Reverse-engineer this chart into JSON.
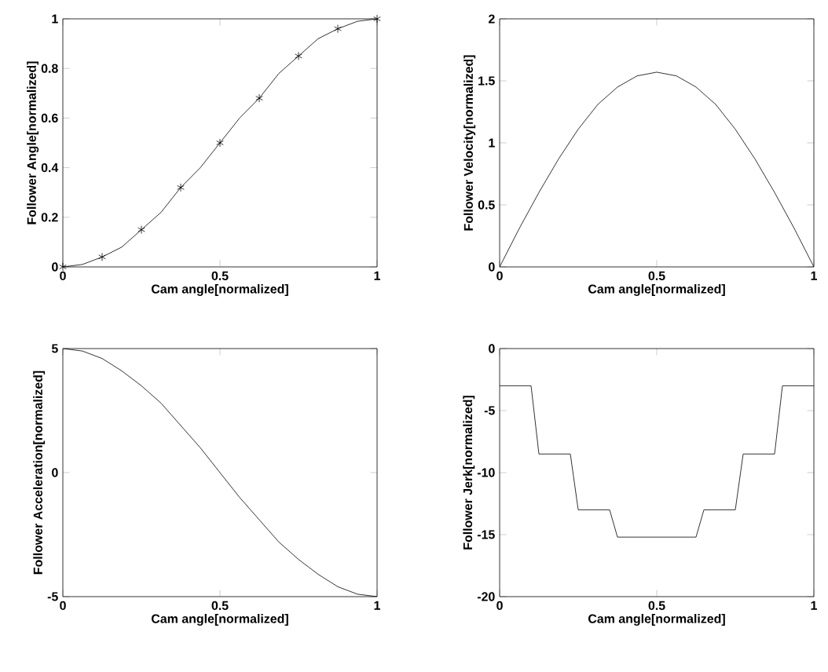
{
  "chart_data": [
    {
      "type": "line",
      "xlabel": "Cam angle[normalized]",
      "ylabel": "Follower Angle[normalized]",
      "xlim": [
        0,
        1
      ],
      "ylim": [
        0,
        1
      ],
      "xticks": [
        0,
        0.5,
        1
      ],
      "yticks": [
        0,
        0.2,
        0.4,
        0.6,
        0.8,
        1
      ],
      "series": [
        {
          "type": "line",
          "color": "#000000",
          "x": [
            0,
            0.0625,
            0.125,
            0.1875,
            0.25,
            0.3125,
            0.375,
            0.4375,
            0.5,
            0.5625,
            0.625,
            0.6875,
            0.75,
            0.8125,
            0.875,
            0.9375,
            1
          ],
          "values": [
            0,
            0.01,
            0.04,
            0.08,
            0.15,
            0.22,
            0.32,
            0.4,
            0.5,
            0.6,
            0.68,
            0.78,
            0.85,
            0.92,
            0.96,
            0.99,
            1
          ]
        },
        {
          "type": "scatter",
          "marker": "cross",
          "color": "#000000",
          "x": [
            0,
            0.125,
            0.25,
            0.375,
            0.5,
            0.625,
            0.75,
            0.875,
            1
          ],
          "values": [
            0,
            0.04,
            0.15,
            0.32,
            0.5,
            0.68,
            0.85,
            0.96,
            1
          ]
        }
      ]
    },
    {
      "type": "line",
      "xlabel": "Cam angle[normalized]",
      "ylabel": "Follower Velocity[normalized]",
      "xlim": [
        0,
        1
      ],
      "ylim": [
        0,
        2
      ],
      "xticks": [
        0,
        0.5,
        1
      ],
      "yticks": [
        0,
        0.5,
        1,
        1.5,
        2
      ],
      "series": [
        {
          "color": "#000000",
          "x": [
            0,
            0.0625,
            0.125,
            0.1875,
            0.25,
            0.3125,
            0.375,
            0.4375,
            0.5,
            0.5625,
            0.625,
            0.6875,
            0.75,
            0.8125,
            0.875,
            0.9375,
            1
          ],
          "values": [
            0,
            0.31,
            0.6,
            0.87,
            1.11,
            1.31,
            1.45,
            1.54,
            1.57,
            1.54,
            1.45,
            1.31,
            1.11,
            0.87,
            0.6,
            0.31,
            0
          ]
        }
      ]
    },
    {
      "type": "line",
      "xlabel": "Cam angle[normalized]",
      "ylabel": "Follower Acceleration[normalized]",
      "xlim": [
        0,
        1
      ],
      "ylim": [
        -5,
        5
      ],
      "xticks": [
        0,
        0.5,
        1
      ],
      "yticks": [
        -5,
        0,
        5
      ],
      "series": [
        {
          "color": "#000000",
          "x": [
            0,
            0.0625,
            0.125,
            0.1875,
            0.25,
            0.3125,
            0.375,
            0.4375,
            0.5,
            0.5625,
            0.625,
            0.6875,
            0.75,
            0.8125,
            0.875,
            0.9375,
            1
          ],
          "values": [
            5,
            4.9,
            4.6,
            4.1,
            3.5,
            2.8,
            1.9,
            1,
            0,
            -1,
            -1.9,
            -2.8,
            -3.5,
            -4.1,
            -4.6,
            -4.9,
            -5
          ]
        }
      ]
    },
    {
      "type": "line",
      "xlabel": "Cam angle[normalized]",
      "ylabel": "Follower Jerk[normalized]",
      "xlim": [
        0,
        1
      ],
      "ylim": [
        -20,
        0
      ],
      "xticks": [
        0,
        0.5,
        1
      ],
      "yticks": [
        -20,
        -15,
        -10,
        -5,
        0
      ],
      "series": [
        {
          "color": "#000000",
          "x": [
            0,
            0.1,
            0.125,
            0.225,
            0.25,
            0.35,
            0.375,
            0.625,
            0.65,
            0.75,
            0.775,
            0.875,
            0.9,
            1
          ],
          "values": [
            -3,
            -3,
            -8.5,
            -8.5,
            -13,
            -13,
            -15.2,
            -15.2,
            -13,
            -13,
            -8.5,
            -8.5,
            -3,
            -3
          ]
        }
      ]
    }
  ]
}
